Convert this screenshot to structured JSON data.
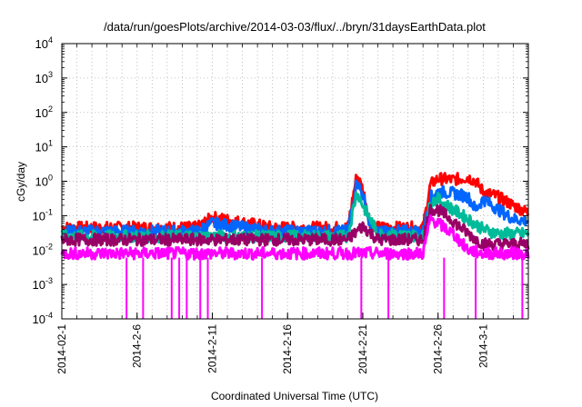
{
  "chart_data": {
    "type": "line",
    "title": "/data/run/goesPlots/archive/2014-03-03/flux/../bryn/31daysEarthData.plot",
    "xlabel": "Coordinated Universal Time (UTC)",
    "ylabel": "cGy/day",
    "x_range": [
      "2014-02-01",
      "2014-03-04"
    ],
    "ylim": [
      0.0001,
      10000
    ],
    "y_scale": "log",
    "grid": true,
    "legend": "none",
    "x_ticks": [
      "2014-02-1",
      "2014-2-6",
      "2014-2-11",
      "2014-2-16",
      "2014-2-21",
      "2014-2-26",
      "2014-3-1"
    ],
    "y_ticks": [
      {
        "value": 0.0001,
        "base": "10",
        "exp": "-4"
      },
      {
        "value": 0.001,
        "base": "10",
        "exp": "-3"
      },
      {
        "value": 0.01,
        "base": "10",
        "exp": "-2"
      },
      {
        "value": 0.1,
        "base": "10",
        "exp": "-1"
      },
      {
        "value": 1,
        "base": "10",
        "exp": "0"
      },
      {
        "value": 10,
        "base": "10",
        "exp": "1"
      },
      {
        "value": 100,
        "base": "10",
        "exp": "2"
      },
      {
        "value": 1000,
        "base": "10",
        "exp": "3"
      },
      {
        "value": 10000,
        "base": "10",
        "exp": "4"
      }
    ],
    "series": [
      {
        "color": "#ff0000",
        "x": [
          "2014-02-01",
          "2014-02-05",
          "2014-02-10",
          "2014-02-11",
          "2014-02-15",
          "2014-02-20",
          "2014-02-20.6",
          "2014-02-21",
          "2014-02-21.5",
          "2014-02-22",
          "2014-02-25",
          "2014-02-25.5",
          "2014-02-26",
          "2014-02-27",
          "2014-02-28",
          "2014-02-28.5",
          "2014-03-01",
          "2014-03-02",
          "2014-03-03",
          "2014-03-04"
        ],
        "y": [
          0.045,
          0.045,
          0.045,
          0.09,
          0.045,
          0.045,
          1.5,
          0.6,
          0.06,
          0.045,
          0.045,
          0.8,
          1.2,
          1.1,
          1.3,
          1.0,
          0.5,
          0.35,
          0.2,
          0.12
        ]
      },
      {
        "color": "#0066ff",
        "x": [
          "2014-02-01",
          "2014-02-05",
          "2014-02-10",
          "2014-02-11",
          "2014-02-15",
          "2014-02-20",
          "2014-02-20.6",
          "2014-02-21",
          "2014-02-21.5",
          "2014-02-22",
          "2014-02-25",
          "2014-02-25.5",
          "2014-02-26",
          "2014-02-27",
          "2014-02-28",
          "2014-02-28.5",
          "2014-03-01",
          "2014-03-02",
          "2014-03-03",
          "2014-03-04"
        ],
        "y": [
          0.035,
          0.035,
          0.035,
          0.06,
          0.035,
          0.035,
          1.0,
          0.4,
          0.045,
          0.035,
          0.035,
          0.35,
          0.5,
          0.45,
          0.35,
          0.15,
          0.3,
          0.15,
          0.08,
          0.07
        ]
      },
      {
        "color": "#00bb99",
        "x": [
          "2014-02-01",
          "2014-02-05",
          "2014-02-10",
          "2014-02-15",
          "2014-02-20",
          "2014-02-20.6",
          "2014-02-21",
          "2014-02-22",
          "2014-02-25",
          "2014-02-25.5",
          "2014-02-26",
          "2014-02-27",
          "2014-02-28",
          "2014-03-01",
          "2014-03-02",
          "2014-03-03",
          "2014-03-04"
        ],
        "y": [
          0.025,
          0.025,
          0.025,
          0.025,
          0.025,
          0.5,
          0.2,
          0.03,
          0.025,
          0.25,
          0.3,
          0.15,
          0.08,
          0.04,
          0.03,
          0.03,
          0.03
        ]
      },
      {
        "color": "#990066",
        "x": [
          "2014-02-01",
          "2014-02-05",
          "2014-02-10",
          "2014-02-15",
          "2014-02-20",
          "2014-02-21",
          "2014-02-22",
          "2014-02-25",
          "2014-02-25.5",
          "2014-02-26",
          "2014-02-27",
          "2014-02-28",
          "2014-03-01",
          "2014-03-02",
          "2014-03-03",
          "2014-03-04"
        ],
        "y": [
          0.02,
          0.02,
          0.02,
          0.02,
          0.02,
          0.05,
          0.02,
          0.02,
          0.15,
          0.15,
          0.07,
          0.03,
          0.015,
          0.015,
          0.015,
          0.015
        ]
      },
      {
        "color": "#ff00ff",
        "x": [
          "2014-02-01",
          "2014-02-05",
          "2014-02-10",
          "2014-02-15",
          "2014-02-20",
          "2014-02-22",
          "2014-02-25",
          "2014-02-25.5",
          "2014-02-26",
          "2014-02-27",
          "2014-02-28",
          "2014-03-01",
          "2014-03-02",
          "2014-03-03",
          "2014-03-04"
        ],
        "y": [
          0.008,
          0.008,
          0.008,
          0.008,
          0.008,
          0.008,
          0.008,
          0.08,
          0.06,
          0.03,
          0.01,
          0.008,
          0.008,
          0.008,
          0.008
        ]
      }
    ],
    "magenta_dropouts": [
      {
        "x": "2014-02-05.3",
        "y": 0.0001
      },
      {
        "x": "2014-02-06.4",
        "y": 0.0001
      },
      {
        "x": "2014-02-08.3",
        "y": 0.0001
      },
      {
        "x": "2014-02-08.8",
        "y": 0.0001
      },
      {
        "x": "2014-02-09.3",
        "y": 0.0001
      },
      {
        "x": "2014-02-10.2",
        "y": 0.0001
      },
      {
        "x": "2014-02-10.7",
        "y": 0.0001
      },
      {
        "x": "2014-02-14.3",
        "y": 0.0001
      },
      {
        "x": "2014-02-20.9",
        "y": 0.0001
      },
      {
        "x": "2014-02-22.7",
        "y": 0.0001
      },
      {
        "x": "2014-02-26.4",
        "y": 0.0001
      },
      {
        "x": "2014-02-28.5",
        "y": 0.0001
      },
      {
        "x": "2014-03-03.6",
        "y": 0.0001
      }
    ]
  }
}
